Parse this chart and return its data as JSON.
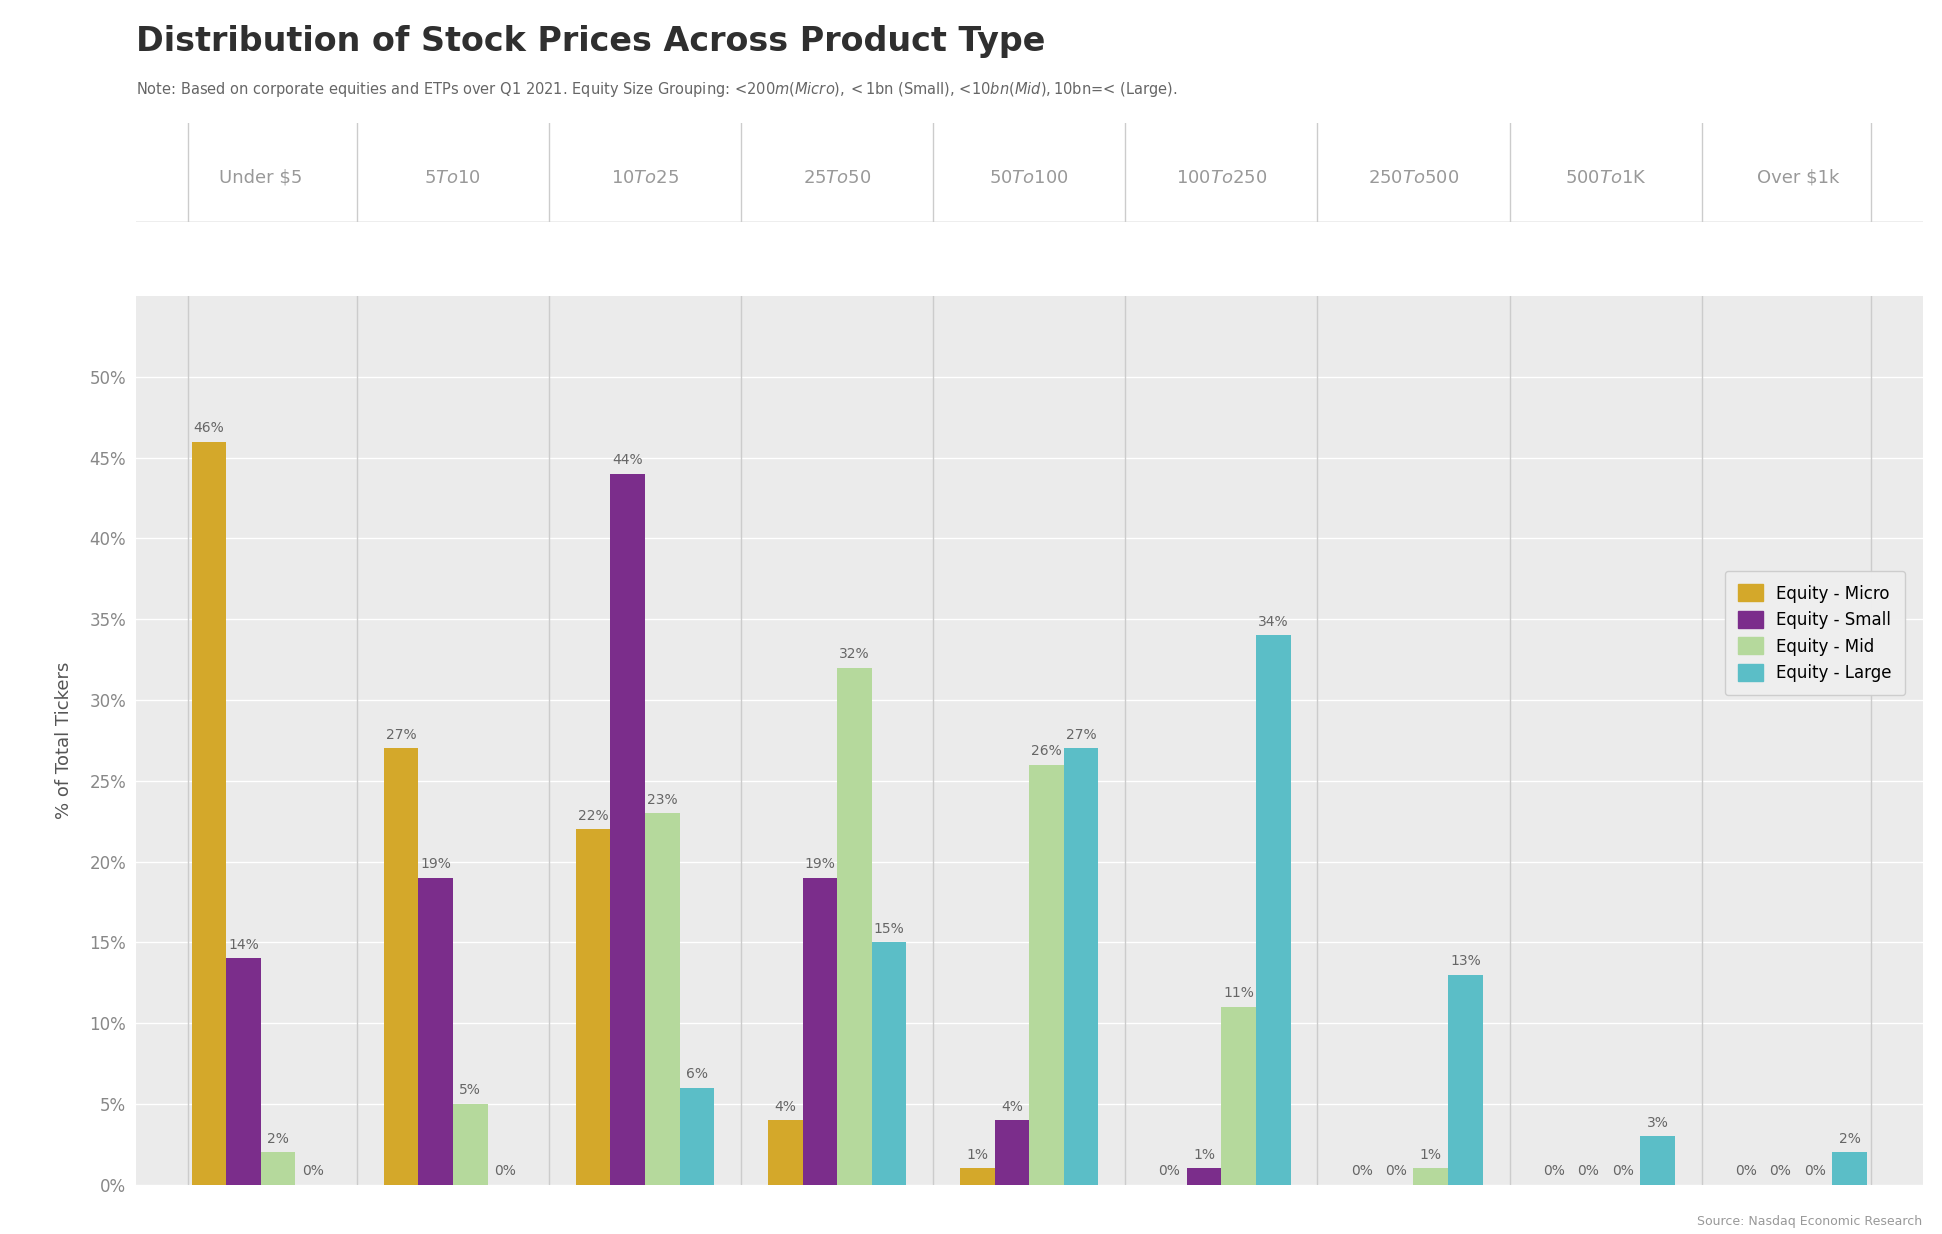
{
  "title": "Distribution of Stock Prices Across Product Type",
  "subtitle": "Note: Based on corporate equities and ETPs over Q1 2021. Equity Size Grouping: <$200m (Micro), <$1bn (Small), <$10bn (Mid), $10bn=< (Large).",
  "source": "Source: Nasdaq Economic Research",
  "ylabel": "% of Total Tickers",
  "categories": [
    "Under $5",
    "$5 To $10",
    "$10 To $25",
    "$25 To $50",
    "$50 To $100",
    "$100 To $250",
    "$250 To $500",
    "$500 To $1K",
    "Over $1k"
  ],
  "series": {
    "Equity - Micro": [
      46,
      27,
      22,
      4,
      1,
      0,
      0,
      0,
      0
    ],
    "Equity - Small": [
      14,
      19,
      44,
      19,
      4,
      1,
      0,
      0,
      0
    ],
    "Equity - Mid": [
      2,
      5,
      23,
      32,
      26,
      11,
      1,
      0,
      0
    ],
    "Equity - Large": [
      0,
      0,
      6,
      15,
      27,
      34,
      13,
      3,
      2
    ]
  },
  "colors": {
    "Equity - Micro": "#D4A82A",
    "Equity - Small": "#7B2D8B",
    "Equity - Mid": "#B5D99C",
    "Equity - Large": "#5BBEC7"
  },
  "bar_width": 0.18,
  "ylim": [
    0,
    55
  ],
  "yticks": [
    0,
    5,
    10,
    15,
    20,
    25,
    30,
    35,
    40,
    45,
    50
  ],
  "ytick_labels": [
    "0%",
    "5%",
    "10%",
    "15%",
    "20%",
    "25%",
    "30%",
    "35%",
    "40%",
    "45%",
    "50%"
  ],
  "background_color": "#FFFFFF",
  "plot_bg_color": "#EBEBEB",
  "header_bg_color": "#FFFFFF",
  "title_fontsize": 24,
  "subtitle_fontsize": 10.5,
  "label_fontsize": 10,
  "axis_label_fontsize": 13,
  "tick_fontsize": 12,
  "legend_fontsize": 12,
  "category_fontsize": 13,
  "title_color": "#2F2F2F",
  "subtitle_color": "#666666",
  "source_color": "#999999",
  "ylabel_color": "#555555",
  "bar_label_color": "#666666",
  "category_label_color": "#999999",
  "grid_color": "#FFFFFF",
  "divider_color": "#CCCCCC"
}
